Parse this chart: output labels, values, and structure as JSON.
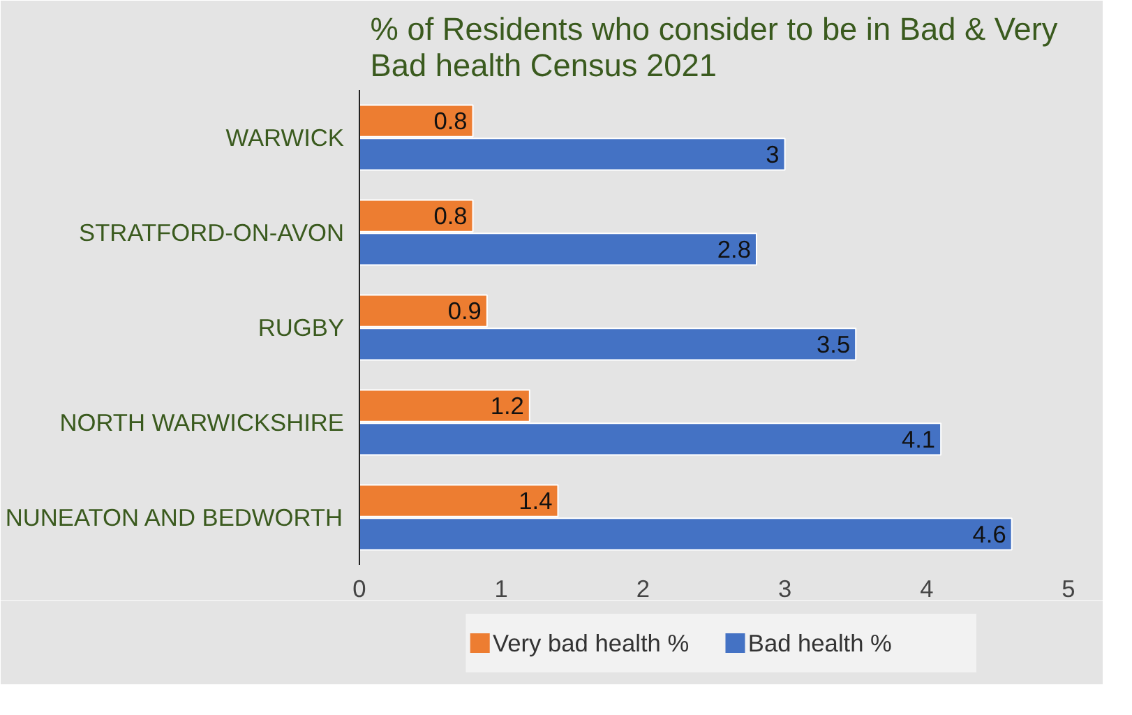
{
  "chart_data": {
    "type": "bar",
    "orientation": "horizontal",
    "title": "% of Residents who consider to be in Bad & Very Bad health Census 2021",
    "categories": [
      "WARWICK",
      "STRATFORD-ON-AVON",
      "RUGBY",
      "NORTH WARWICKSHIRE",
      "NUNEATON AND BEDWORTH"
    ],
    "series": [
      {
        "name": "Very bad health   %",
        "color": "#ed7d31",
        "values": [
          0.8,
          0.8,
          0.9,
          1.2,
          1.4
        ]
      },
      {
        "name": "Bad health   %",
        "color": "#4472c4",
        "values": [
          3,
          2.8,
          3.5,
          4.1,
          4.6
        ]
      }
    ],
    "xlim": [
      0,
      5
    ],
    "xticks": [
      0,
      1,
      2,
      3,
      4,
      5
    ],
    "legend": "bottom",
    "data_labels": true
  }
}
